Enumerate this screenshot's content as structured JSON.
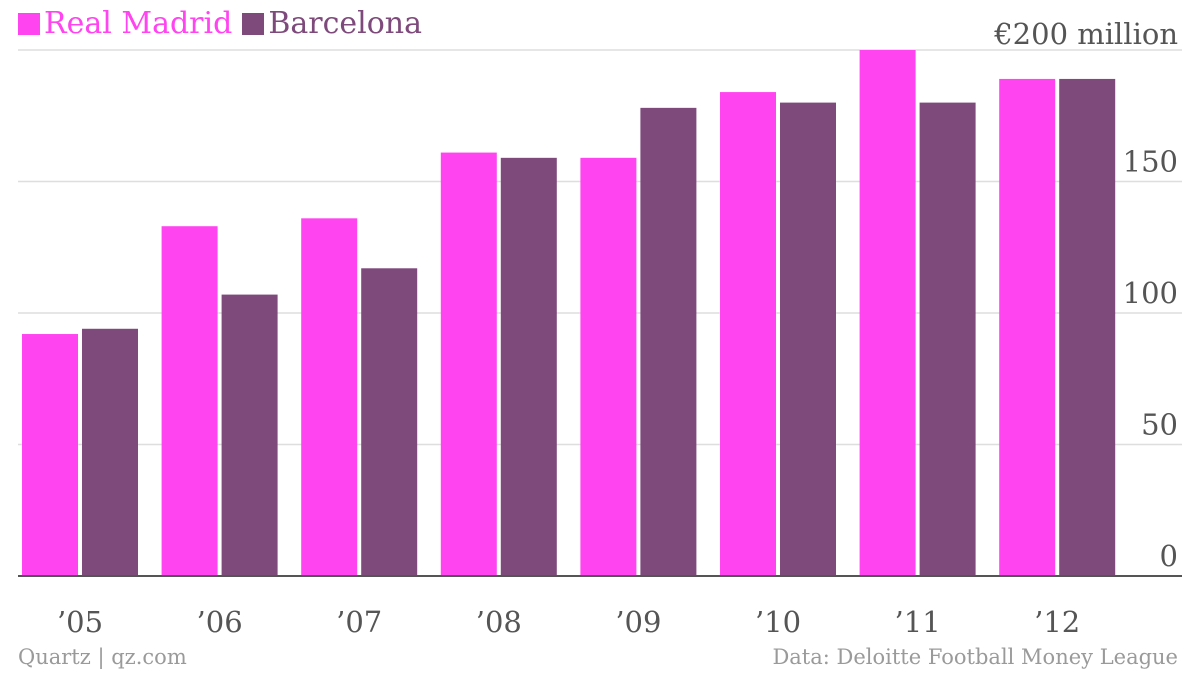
{
  "chart_data": {
    "type": "bar",
    "categories": [
      "’05",
      "’06",
      "’07",
      "’08",
      "’09",
      "’10",
      "’11",
      "’12"
    ],
    "series": [
      {
        "name": "Real Madrid",
        "color": "#ff44f0",
        "values": [
          92,
          133,
          136,
          161,
          159,
          184,
          200,
          189
        ]
      },
      {
        "name": "Barcelona",
        "color": "#7e4a7c",
        "values": [
          94,
          107,
          117,
          159,
          178,
          180,
          180,
          189
        ]
      }
    ],
    "y_ticks": [
      {
        "value": 0,
        "label": "0"
      },
      {
        "value": 50,
        "label": "50"
      },
      {
        "value": 100,
        "label": "100"
      },
      {
        "value": 150,
        "label": "150"
      },
      {
        "value": 200,
        "label": "€200 million"
      }
    ],
    "ylim": [
      0,
      200
    ],
    "grid": true,
    "legend_position": "top-left",
    "y_axis_side": "right"
  },
  "footer": {
    "credit": "Quartz | qz.com",
    "source": "Data: Deloitte Football Money League"
  }
}
